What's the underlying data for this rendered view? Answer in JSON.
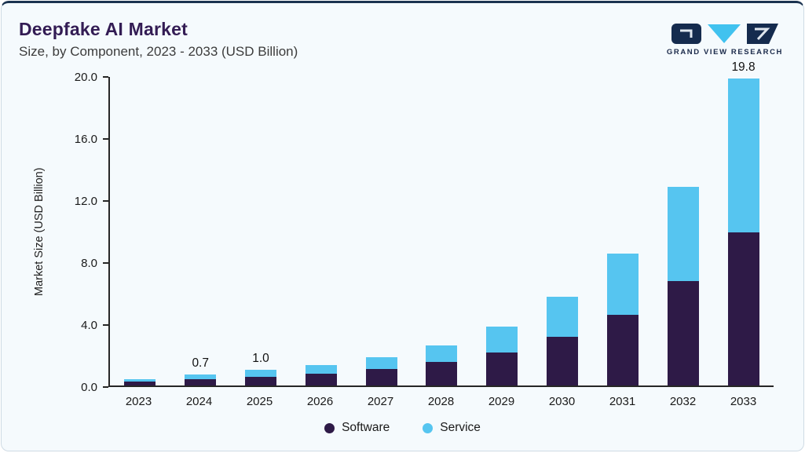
{
  "header": {
    "title": "Deepfake AI Market",
    "subtitle": "Size, by Component, 2023 - 2033 (USD Billion)",
    "logo_text": "GRAND VIEW RESEARCH"
  },
  "chart_data": {
    "type": "bar",
    "stacked": true,
    "title": "Deepfake AI Market Size, by Component, 2023 - 2033 (USD Billion)",
    "categories": [
      "2023",
      "2024",
      "2025",
      "2026",
      "2027",
      "2028",
      "2029",
      "2030",
      "2031",
      "2032",
      "2033"
    ],
    "series": [
      {
        "name": "Software",
        "color": "#2e1a47",
        "values": [
          0.25,
          0.4,
          0.55,
          0.75,
          1.05,
          1.5,
          2.15,
          3.15,
          4.55,
          6.75,
          9.85
        ]
      },
      {
        "name": "Service",
        "color": "#56c5f0",
        "values": [
          0.15,
          0.3,
          0.45,
          0.55,
          0.75,
          1.1,
          1.65,
          2.55,
          3.95,
          6.05,
          9.95
        ]
      }
    ],
    "totals": [
      0.4,
      0.7,
      1.0,
      1.3,
      1.8,
      2.6,
      3.8,
      5.7,
      8.5,
      12.8,
      19.8
    ],
    "total_labels": {
      "2024": "0.7",
      "2025": "1.0",
      "2033": "19.8"
    },
    "ylabel": "Market Size (USD Billion)",
    "ylim": [
      0,
      20
    ],
    "yticks": [
      "0.0",
      "4.0",
      "8.0",
      "12.0",
      "16.0",
      "20.0"
    ],
    "legend_position": "bottom",
    "grid": false,
    "colors": {
      "software": "#2e1a47",
      "service": "#56c5f0",
      "accent_top": "#1b3350",
      "title": "#331c54"
    }
  }
}
